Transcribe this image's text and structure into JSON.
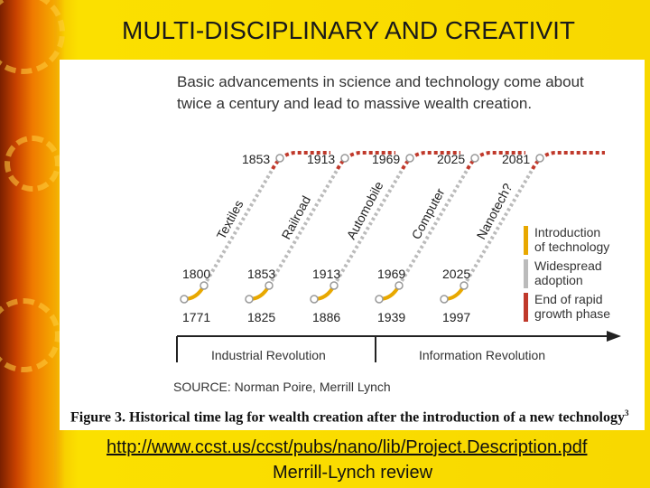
{
  "slide": {
    "title": "MULTI-DISCIPLINARY AND CREATIVIT",
    "link": "http://www.ccst.us/ccst/pubs/nano/lib/Project.Description.pdf",
    "subtitle": "Merrill-Lynch review"
  },
  "figure": {
    "headline_line1": "Basic advancements in science and technology come about",
    "headline_line2": "twice a century and lead to massive wealth creation.",
    "source": "SOURCE: Norman Poire, Merrill Lynch",
    "caption": "Figure 3. Historical time lag for wealth creation after the introduction of a new technology",
    "caption_note": "3",
    "eras": [
      "Industrial Revolution",
      "Information Revolution"
    ],
    "waves": [
      {
        "name": "Textiles",
        "start": "1771",
        "adoption": "1800",
        "end": "1853"
      },
      {
        "name": "Railroad",
        "start": "1825",
        "adoption": "1853",
        "end": "1913"
      },
      {
        "name": "Automobile",
        "start": "1886",
        "adoption": "1913",
        "end": "1969"
      },
      {
        "name": "Computer",
        "start": "1939",
        "adoption": "1969",
        "end": "2025"
      },
      {
        "name": "Nanotech?",
        "start": "1997",
        "adoption": "2025",
        "end": "2081"
      }
    ],
    "legend": [
      {
        "line1": "Introduction",
        "line2": "of technology",
        "color": "#e8a800"
      },
      {
        "line1": "Widespread",
        "line2": "adoption",
        "color": "#bbbbbb"
      },
      {
        "line1": "End of rapid",
        "line2": "growth phase",
        "color": "#c0392b"
      }
    ]
  }
}
